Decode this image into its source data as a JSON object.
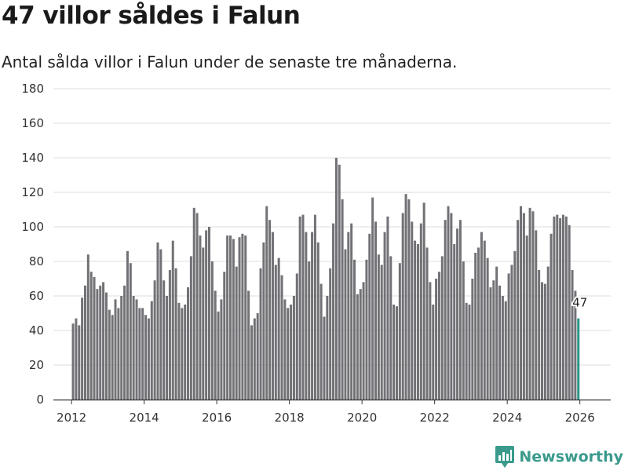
{
  "title": "47 villor såldes i Falun",
  "subtitle": "Antal sålda villor i Falun under de senaste tre månaderna.",
  "brand": "Newsworthy",
  "colors": {
    "bar": "#727176",
    "highlight": "#2a9486",
    "grid": "#dddddd",
    "axis": "#333333",
    "brand": "#3a9a8c"
  },
  "chart_data": {
    "type": "bar",
    "title": "47 villor såldes i Falun",
    "xlabel": "",
    "ylabel": "",
    "ylim": [
      0,
      180
    ],
    "yticks": [
      0,
      20,
      40,
      60,
      80,
      100,
      120,
      140,
      160,
      180
    ],
    "xlim": [
      2011.5,
      2026.85
    ],
    "xticks": [
      2012,
      2014,
      2016,
      2018,
      2020,
      2022,
      2024,
      2026
    ],
    "grid": true,
    "legend": "none",
    "start_year": 2012,
    "start_month": 1,
    "values": [
      44,
      47,
      43,
      59,
      66,
      84,
      74,
      71,
      64,
      66,
      68,
      62,
      52,
      49,
      58,
      53,
      60,
      66,
      86,
      79,
      60,
      58,
      53,
      53,
      49,
      47,
      57,
      69,
      91,
      87,
      69,
      60,
      75,
      92,
      76,
      56,
      53,
      55,
      65,
      83,
      111,
      108,
      95,
      88,
      98,
      100,
      80,
      63,
      51,
      58,
      74,
      95,
      95,
      93,
      77,
      94,
      96,
      95,
      63,
      43,
      47,
      50,
      76,
      91,
      112,
      104,
      97,
      78,
      82,
      72,
      58,
      53,
      55,
      60,
      73,
      106,
      107,
      97,
      80,
      97,
      107,
      91,
      67,
      48,
      60,
      76,
      102,
      140,
      136,
      116,
      87,
      97,
      102,
      81,
      61,
      64,
      68,
      81,
      96,
      117,
      103,
      84,
      78,
      97,
      106,
      83,
      55,
      54,
      79,
      108,
      119,
      116,
      103,
      92,
      90,
      102,
      114,
      88,
      68,
      55,
      70,
      74,
      83,
      104,
      112,
      108,
      90,
      99,
      104,
      80,
      56,
      55,
      70,
      85,
      88,
      97,
      92,
      82,
      65,
      69,
      77,
      66,
      60,
      57,
      73,
      78,
      86,
      104,
      112,
      108,
      95,
      111,
      109,
      98,
      75,
      68,
      67,
      77,
      96,
      106,
      107,
      105,
      107,
      106,
      101,
      75,
      63,
      47
    ],
    "highlight_last": true,
    "last_value_label": "47",
    "tick_labels": [
      "2012",
      "2014",
      "2016",
      "2018",
      "2020",
      "2022",
      "2024",
      "2026"
    ]
  }
}
